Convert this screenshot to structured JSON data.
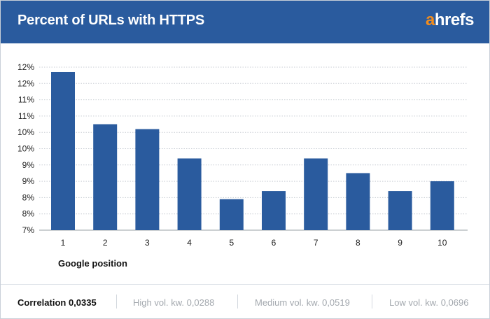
{
  "header": {
    "title": "Percent of URLs with HTTPS",
    "brand_a": "a",
    "brand_rest": "hrefs"
  },
  "colors": {
    "header_bg": "#2a5b9e",
    "bar": "#2a5b9e",
    "brand_accent": "#f28c1c",
    "grid": "#c9ced4"
  },
  "chart_data": {
    "type": "bar",
    "title": "Percent of URLs with HTTPS",
    "xlabel": "Google position",
    "ylabel": "",
    "categories": [
      "1",
      "2",
      "3",
      "4",
      "5",
      "6",
      "7",
      "8",
      "9",
      "10"
    ],
    "values": [
      11.85,
      10.25,
      10.1,
      9.2,
      7.95,
      8.2,
      9.2,
      8.75,
      8.2,
      8.5
    ],
    "ylim": [
      7,
      12
    ],
    "ytick_labels": [
      "12%",
      "12%",
      "11%",
      "11%",
      "10%",
      "10%",
      "9%",
      "9%",
      "8%",
      "8%",
      "7%"
    ],
    "grid": true
  },
  "footer": {
    "correlation": "Correlation 0,0335",
    "high": "High vol. kw. 0,0288",
    "medium": "Medium vol. kw. 0,0519",
    "low": "Low vol. kw. 0,0696"
  }
}
